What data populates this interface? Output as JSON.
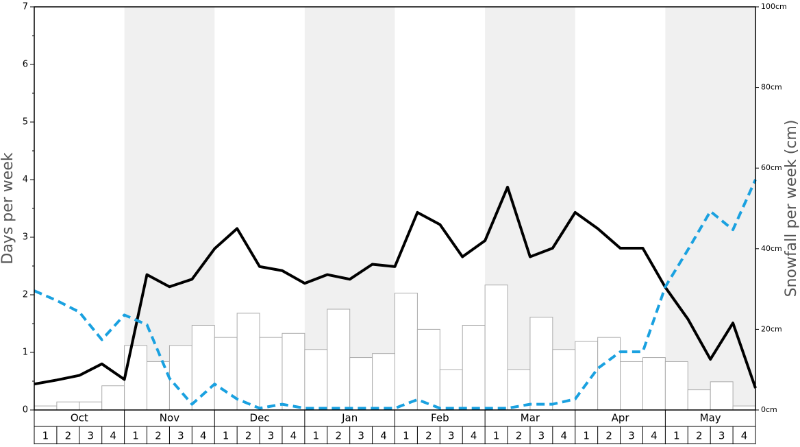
{
  "chart_data": {
    "type": "bar_line",
    "ylabel": "Days per week",
    "y2label": "Snowfall per week (cm)",
    "months": [
      "Oct",
      "Nov",
      "Dec",
      "Jan",
      "Feb",
      "Mar",
      "Apr",
      "May"
    ],
    "weeks": [
      "1",
      "2",
      "3",
      "4"
    ],
    "ylim": [
      0,
      7
    ],
    "yticks": [
      0,
      1,
      2,
      3,
      4,
      5,
      6,
      7
    ],
    "y2lim": [
      0,
      100
    ],
    "y2ticks": [
      {
        "value": 0,
        "label": "0cm"
      },
      {
        "value": 20,
        "label": "20cm"
      },
      {
        "value": 40,
        "label": "40cm"
      },
      {
        "value": 60,
        "label": "60cm"
      },
      {
        "value": 80,
        "label": "80cm"
      },
      {
        "value": 100,
        "label": "100cm"
      }
    ],
    "bars": {
      "axis": "y2",
      "color": "#ffffff",
      "values": [
        1,
        2,
        2,
        6,
        16,
        12,
        16,
        21,
        18,
        24,
        18,
        19,
        15,
        25,
        13,
        14,
        29,
        20,
        10,
        21,
        31,
        10,
        23,
        15,
        17,
        18,
        12,
        13,
        12,
        5,
        7,
        1
      ]
    },
    "series": [
      {
        "color": "#000000",
        "dash": false,
        "values": [
          0.45,
          0.52,
          0.6,
          0.8,
          0.53,
          2.35,
          2.14,
          2.27,
          2.8,
          3.15,
          2.49,
          2.42,
          2.2,
          2.35,
          2.27,
          2.53,
          2.49,
          3.43,
          3.22,
          2.66,
          2.94,
          3.87,
          2.66,
          2.81,
          3.43,
          3.15,
          2.81,
          2.81,
          2.13,
          1.58,
          0.88,
          1.51,
          0.38
        ]
      },
      {
        "color": "#1aa1e0",
        "dash": true,
        "values": [
          2.07,
          1.9,
          1.7,
          1.22,
          1.65,
          1.48,
          0.55,
          0.1,
          0.45,
          0.19,
          0.03,
          0.1,
          0.03,
          0.03,
          0.03,
          0.03,
          0.03,
          0.18,
          0.03,
          0.03,
          0.03,
          0.03,
          0.1,
          0.1,
          0.19,
          0.72,
          1.01,
          1.01,
          2.14,
          2.78,
          3.45,
          3.13,
          4.0
        ]
      }
    ]
  }
}
